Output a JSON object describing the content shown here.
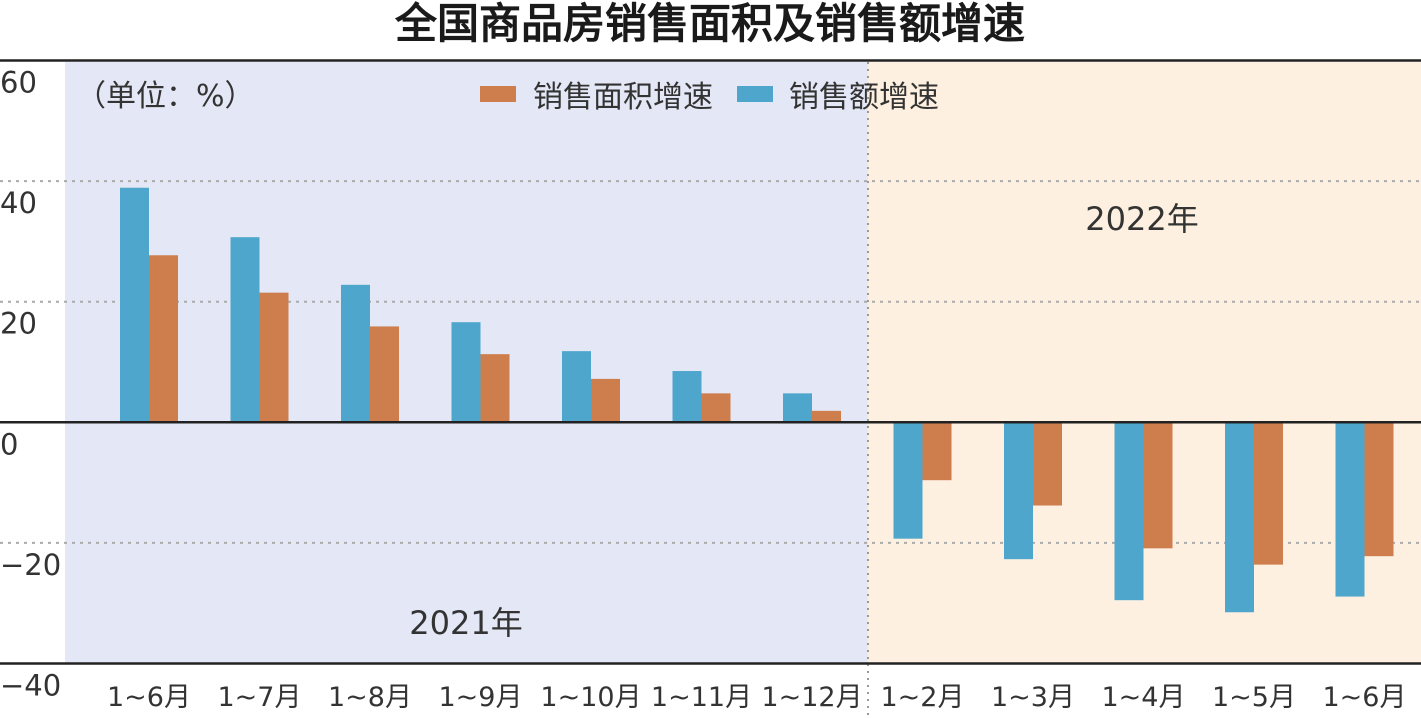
{
  "title": "全国商品房销售面积及销售额增速",
  "unit_label": "（单位：%）",
  "colors": {
    "area_series": "#cd7e4c",
    "amount_series": "#4ea6cc",
    "bg_2021": "#e4e8f6",
    "bg_2022": "#fdf0e0"
  },
  "legend": {
    "area_label": "销售面积增速",
    "amount_label": "销售额增速"
  },
  "periods": {
    "p2021": "2021年",
    "p2022": "2022年"
  },
  "chart_data": {
    "type": "bar",
    "categories": [
      "1~6月",
      "1~7月",
      "1~8月",
      "1~9月",
      "1~10月",
      "1~11月",
      "1~12月",
      "1~2月",
      "1~3月",
      "1~4月",
      "1~5月",
      "1~6月"
    ],
    "series": [
      {
        "name": "销售额增速",
        "values": [
          38.9,
          30.7,
          22.8,
          16.6,
          11.8,
          8.5,
          4.8,
          -19.3,
          -22.7,
          -29.5,
          -31.5,
          -28.9
        ]
      },
      {
        "name": "销售面积增速",
        "values": [
          27.7,
          21.5,
          15.9,
          11.3,
          7.2,
          4.8,
          1.9,
          -9.6,
          -13.8,
          -20.9,
          -23.6,
          -22.2
        ]
      }
    ],
    "ylim": [
      -40,
      60
    ],
    "yticks": [
      "60",
      "40",
      "20",
      "0",
      "−20",
      "−40"
    ],
    "grid": true,
    "legend_position": "top-center"
  }
}
